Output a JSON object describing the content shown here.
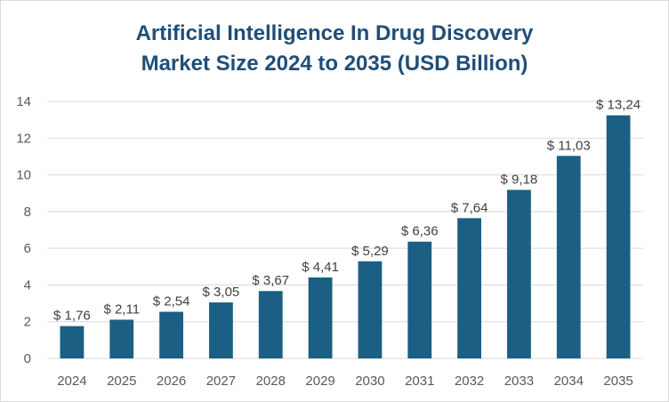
{
  "chart_data": {
    "type": "bar",
    "title_lines": [
      "Artificial Intelligence In Drug Discovery",
      "Market Size 2024 to 2035 (USD Billion)"
    ],
    "categories": [
      "2024",
      "2025",
      "2026",
      "2027",
      "2028",
      "2029",
      "2030",
      "2031",
      "2032",
      "2033",
      "2034",
      "2035"
    ],
    "values": [
      1.76,
      2.11,
      2.54,
      3.05,
      3.67,
      4.41,
      5.29,
      6.36,
      7.64,
      9.18,
      11.03,
      13.24
    ],
    "data_labels": [
      "$ 1,76",
      "$ 2,11",
      "$ 2,54",
      "$ 3,05",
      "$ 3,67",
      "$ 4,41",
      "$ 5,29",
      "$ 6,36",
      "$ 7,64",
      "$ 9,18",
      "$ 11,03",
      "$ 13,24"
    ],
    "yticks": [
      0,
      2,
      4,
      6,
      8,
      10,
      12,
      14
    ],
    "ylim": [
      0,
      14
    ],
    "grid": true,
    "legend": "none",
    "bar_color": "#1b5f84",
    "grid_color": "#d9d9d9"
  }
}
